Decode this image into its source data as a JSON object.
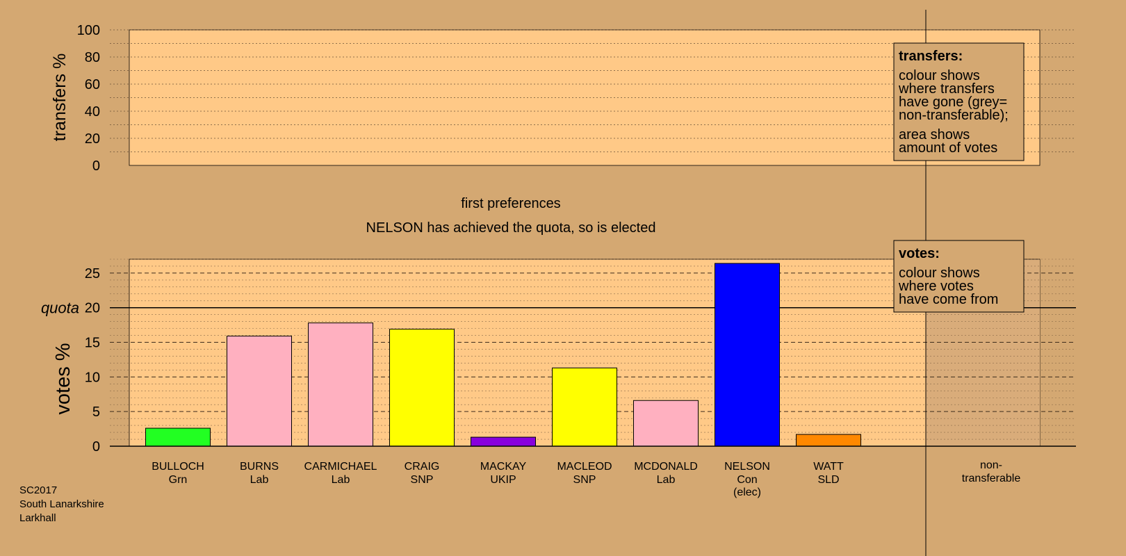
{
  "colors": {
    "background": "#d4a872",
    "plot_area": "#ffc987",
    "plot_area_shaded": "#d9ac7a",
    "box_fill": "#d4a872"
  },
  "chart_data": {
    "type": "bar",
    "caption": "first preferences",
    "status": "NELSON has achieved the quota, so is elected",
    "election_info": [
      "SC2017",
      "South Lanarkshire",
      "Larkhall"
    ],
    "transfers_panel": {
      "ylabel": "transfers %",
      "ylim": [
        0,
        100
      ],
      "yticks": [
        0,
        20,
        40,
        60,
        80,
        100
      ],
      "legend": {
        "title": "transfers:",
        "lines_a": [
          "colour shows",
          "where transfers",
          "have gone (grey=",
          "non-transferable);"
        ],
        "lines_b": [
          "area shows",
          "amount of votes"
        ]
      }
    },
    "votes_panel": {
      "ylabel": "votes %",
      "ylim": [
        0,
        27
      ],
      "yticks": [
        0,
        5,
        10,
        15,
        20,
        25
      ],
      "quota": 20,
      "quota_label": "quota",
      "legend": {
        "title": "votes:",
        "lines": [
          "colour shows",
          "where votes",
          "have come from"
        ]
      }
    },
    "candidates": [
      {
        "name": "BULLOCH",
        "party": "Grn",
        "value": 2.6,
        "color": "#22ff22"
      },
      {
        "name": "BURNS",
        "party": "Lab",
        "value": 15.9,
        "color": "#ffb0c0"
      },
      {
        "name": "CARMICHAEL",
        "party": "Lab",
        "value": 17.8,
        "color": "#ffb0c0"
      },
      {
        "name": "CRAIG",
        "party": "SNP",
        "value": 16.9,
        "color": "#ffff00"
      },
      {
        "name": "MACKAY",
        "party": "UKIP",
        "value": 1.3,
        "color": "#8800dd"
      },
      {
        "name": "MACLEOD",
        "party": "SNP",
        "value": 11.3,
        "color": "#ffff00"
      },
      {
        "name": "MCDONALD",
        "party": "Lab",
        "value": 6.6,
        "color": "#ffb0c0"
      },
      {
        "name": "NELSON",
        "party": "Con",
        "note": "(elec)",
        "value": 26.4,
        "color": "#0000ff"
      },
      {
        "name": "WATT",
        "party": "SLD",
        "value": 1.7,
        "color": "#ff8800"
      }
    ],
    "nontransferable": {
      "label_lines": [
        "non-",
        "transferable"
      ]
    }
  }
}
